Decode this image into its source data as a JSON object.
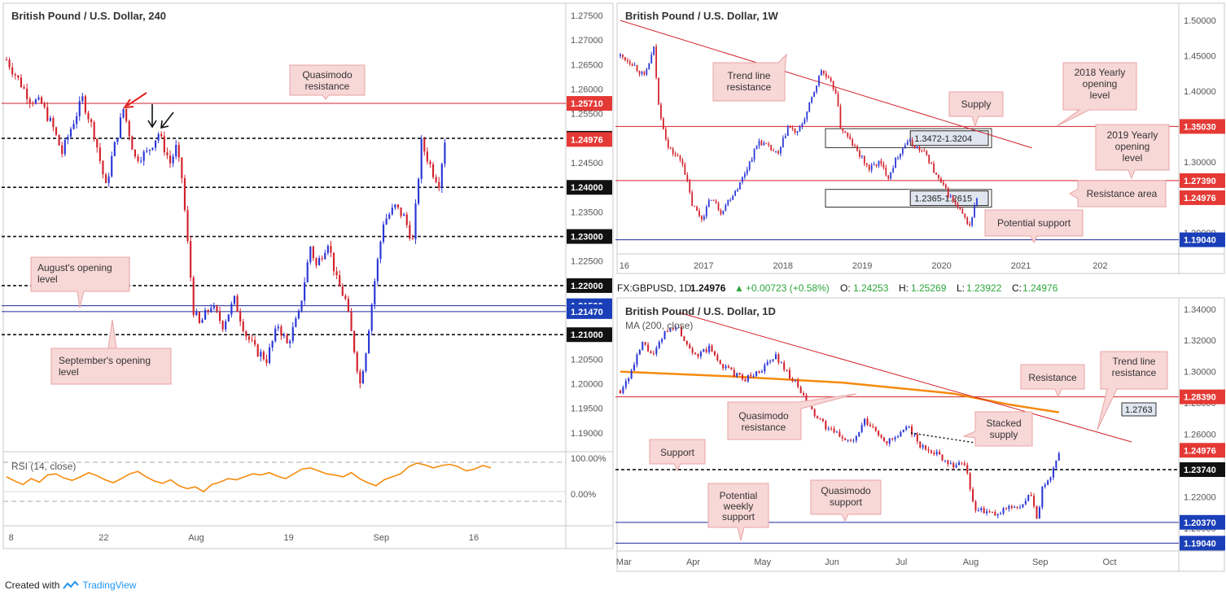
{
  "colors": {
    "bull": "#2a36d6",
    "bear": "#d3212c",
    "ma": "#f58a0e",
    "rsi": "#f58a0e",
    "resistance_line": "#d3212c",
    "support_line": "#1f2a9c",
    "callout_fill": "#f8d7d7",
    "callout_stroke": "#e8a3a3",
    "box_fill": "#dfe6ef"
  },
  "footer": {
    "prefix": "Created with",
    "brand": "TradingView"
  },
  "chart_data": [
    {
      "id": "h4",
      "type": "candlestick",
      "title": "British Pound / U.S. Dollar, 240",
      "y_ticks": [
        "1.27500",
        "1.27000",
        "1.26500",
        "1.26000",
        "1.25500",
        "1.25000",
        "1.24500",
        "1.24000",
        "1.23500",
        "1.23000",
        "1.22500",
        "1.22000",
        "1.21500",
        "1.21000",
        "1.20500",
        "1.20000",
        "1.19500",
        "1.19000"
      ],
      "x_ticks": [
        "8",
        "22",
        "Aug",
        "19",
        "Sep",
        "16"
      ],
      "ylim": [
        1.187,
        1.2765
      ],
      "path": [
        [
          0,
          1.266
        ],
        [
          4,
          1.262
        ],
        [
          8,
          1.258
        ],
        [
          12,
          1.257
        ],
        [
          16,
          1.252
        ],
        [
          19,
          1.247
        ],
        [
          22,
          1.252
        ],
        [
          26,
          1.258
        ],
        [
          30,
          1.251
        ],
        [
          34,
          1.24
        ],
        [
          36,
          1.246
        ],
        [
          40,
          1.256
        ],
        [
          44,
          1.246
        ],
        [
          48,
          1.247
        ],
        [
          52,
          1.251
        ],
        [
          56,
          1.245
        ],
        [
          58,
          1.248
        ],
        [
          60,
          1.242
        ],
        [
          64,
          1.215
        ],
        [
          66,
          1.212
        ],
        [
          70,
          1.216
        ],
        [
          74,
          1.212
        ],
        [
          78,
          1.217
        ],
        [
          82,
          1.21
        ],
        [
          85,
          1.207
        ],
        [
          89,
          1.205
        ],
        [
          93,
          1.212
        ],
        [
          96,
          1.208
        ],
        [
          100,
          1.214
        ],
        [
          104,
          1.228
        ],
        [
          106,
          1.224
        ],
        [
          110,
          1.229
        ],
        [
          113,
          1.221
        ],
        [
          116,
          1.217
        ],
        [
          119,
          1.207
        ],
        [
          121,
          1.2
        ],
        [
          123,
          1.207
        ],
        [
          126,
          1.221
        ],
        [
          129,
          1.233
        ],
        [
          133,
          1.236
        ],
        [
          136,
          1.234
        ],
        [
          139,
          1.229
        ],
        [
          142,
          1.249
        ],
        [
          146,
          1.243
        ],
        [
          148,
          1.241
        ],
        [
          150,
          1.2497
        ]
      ],
      "x_total": 190,
      "levels": [
        {
          "price": 1.2571,
          "label": "1.25710",
          "kind": "red"
        },
        {
          "price": 1.25,
          "label": "1.25000",
          "kind": "black"
        },
        {
          "price": 1.24,
          "label": "1.24000",
          "kind": "black"
        },
        {
          "price": 1.23,
          "label": "1.23000",
          "kind": "black"
        },
        {
          "price": 1.22,
          "label": "1.22000",
          "kind": "black"
        },
        {
          "price": 1.2159,
          "label": "1.21590",
          "kind": "blue"
        },
        {
          "price": 1.2147,
          "label": "1.21470",
          "kind": "blue"
        },
        {
          "price": 1.21,
          "label": "1.21000",
          "kind": "black"
        }
      ],
      "current": {
        "price": 1.24976,
        "label": "1.24976"
      },
      "annotations": [
        "Quasimodo resistance",
        "August's opening level",
        "September's opening level"
      ],
      "rsi": {
        "label": "RSI (14, close)",
        "ticks": [
          "100.00%",
          "0.00%"
        ],
        "values": [
          55,
          48,
          42,
          52,
          46,
          58,
          60,
          53,
          49,
          55,
          62,
          57,
          50,
          45,
          52,
          60,
          64,
          55,
          48,
          44,
          50,
          40,
          35,
          38,
          30,
          42,
          46,
          52,
          50,
          55,
          60,
          58,
          62,
          56,
          52,
          60,
          68,
          70,
          65,
          60,
          58,
          55,
          62,
          52,
          45,
          40,
          50,
          55,
          60,
          72,
          78,
          75,
          70,
          74,
          76,
          72,
          65,
          68,
          74,
          70
        ]
      }
    },
    {
      "id": "weekly",
      "type": "candlestick",
      "title": "British Pound / U.S. Dollar, 1W",
      "y_ticks": [
        "1.50000",
        "1.45000",
        "1.40000",
        "1.35000",
        "1.30000",
        "1.25000",
        "1.20000"
      ],
      "x_ticks": [
        "16",
        "2017",
        "2018",
        "2019",
        "2020",
        "2021",
        "202"
      ],
      "ylim": [
        1.175,
        1.515
      ],
      "path": [
        [
          0,
          1.45
        ],
        [
          5,
          1.44
        ],
        [
          10,
          1.42
        ],
        [
          14,
          1.46
        ],
        [
          16,
          1.38
        ],
        [
          20,
          1.32
        ],
        [
          26,
          1.3
        ],
        [
          30,
          1.24
        ],
        [
          34,
          1.22
        ],
        [
          38,
          1.25
        ],
        [
          42,
          1.23
        ],
        [
          46,
          1.25
        ],
        [
          50,
          1.27
        ],
        [
          54,
          1.3
        ],
        [
          58,
          1.33
        ],
        [
          62,
          1.32
        ],
        [
          66,
          1.31
        ],
        [
          70,
          1.35
        ],
        [
          74,
          1.34
        ],
        [
          78,
          1.37
        ],
        [
          82,
          1.41
        ],
        [
          84,
          1.43
        ],
        [
          86,
          1.42
        ],
        [
          90,
          1.4
        ],
        [
          92,
          1.35
        ],
        [
          96,
          1.33
        ],
        [
          100,
          1.31
        ],
        [
          104,
          1.29
        ],
        [
          108,
          1.3
        ],
        [
          112,
          1.28
        ],
        [
          116,
          1.31
        ],
        [
          120,
          1.33
        ],
        [
          124,
          1.32
        ],
        [
          128,
          1.31
        ],
        [
          132,
          1.28
        ],
        [
          136,
          1.26
        ],
        [
          140,
          1.24
        ],
        [
          144,
          1.22
        ],
        [
          146,
          1.21
        ],
        [
          149,
          1.2497
        ]
      ],
      "x_total": 232,
      "levels": [
        {
          "price": 1.3503,
          "label": "1.35030",
          "kind": "red"
        },
        {
          "price": 1.2739,
          "label": "1.27390",
          "kind": "red"
        },
        {
          "price": 1.1904,
          "label": "1.19040",
          "kind": "blue"
        }
      ],
      "current": {
        "price": 1.24976,
        "label": "1.24976"
      },
      "zones": [
        {
          "label": "1.3472-1.3204",
          "top": 1.3472,
          "bottom": 1.3204
        },
        {
          "label": "1.2365-1.2615",
          "top": 1.2615,
          "bottom": 1.2365
        }
      ],
      "trendline": [
        [
          0,
          1.5
        ],
        [
          172,
          1.32
        ]
      ],
      "annotations": [
        "Trend line resistance",
        "2018 Yearly opening level",
        "Supply",
        "2019 Yearly opening level",
        "Resistance area",
        "Potential support"
      ]
    },
    {
      "id": "daily",
      "type": "candlestick",
      "title": "British Pound / U.S. Dollar, 1D",
      "header": {
        "symbol": "FX:GBPUSD, 1D",
        "last": "1.24976",
        "change": "+0.00723 (+0.58%)",
        "O": "1.24253",
        "H": "1.25269",
        "L": "1.23922",
        "C": "1.24976"
      },
      "ma_label": "MA (200, close)",
      "y_ticks": [
        "1.34000",
        "1.32000",
        "1.30000",
        "1.28000",
        "1.26000",
        "1.24000",
        "1.22000",
        "1.20000"
      ],
      "x_ticks": [
        "Mar",
        "Apr",
        "May",
        "Jun",
        "Jul",
        "Aug",
        "Sep",
        "Oct"
      ],
      "ylim": [
        1.188,
        1.343
      ],
      "path": [
        [
          0,
          1.288
        ],
        [
          4,
          1.3
        ],
        [
          8,
          1.318
        ],
        [
          12,
          1.31
        ],
        [
          16,
          1.325
        ],
        [
          20,
          1.33
        ],
        [
          24,
          1.318
        ],
        [
          28,
          1.31
        ],
        [
          32,
          1.315
        ],
        [
          36,
          1.305
        ],
        [
          40,
          1.3
        ],
        [
          44,
          1.295
        ],
        [
          48,
          1.298
        ],
        [
          52,
          1.303
        ],
        [
          56,
          1.31
        ],
        [
          60,
          1.3
        ],
        [
          64,
          1.29
        ],
        [
          68,
          1.277
        ],
        [
          72,
          1.268
        ],
        [
          76,
          1.262
        ],
        [
          80,
          1.258
        ],
        [
          84,
          1.255
        ],
        [
          88,
          1.268
        ],
        [
          92,
          1.262
        ],
        [
          96,
          1.255
        ],
        [
          100,
          1.258
        ],
        [
          104,
          1.265
        ],
        [
          108,
          1.252
        ],
        [
          112,
          1.25
        ],
        [
          116,
          1.245
        ],
        [
          120,
          1.24
        ],
        [
          124,
          1.242
        ],
        [
          126,
          1.225
        ],
        [
          128,
          1.212
        ],
        [
          132,
          1.21
        ],
        [
          136,
          1.208
        ],
        [
          140,
          1.215
        ],
        [
          144,
          1.212
        ],
        [
          148,
          1.222
        ],
        [
          150,
          1.205
        ],
        [
          152,
          1.225
        ],
        [
          155,
          1.232
        ],
        [
          158,
          1.2497
        ]
      ],
      "x_total": 200,
      "ma200": [
        [
          0,
          1.3
        ],
        [
          40,
          1.297
        ],
        [
          80,
          1.293
        ],
        [
          120,
          1.286
        ],
        [
          140,
          1.279
        ],
        [
          158,
          1.274
        ]
      ],
      "levels": [
        {
          "price": 1.2839,
          "label": "1.28390",
          "kind": "red"
        },
        {
          "price": 1.2374,
          "label": "1.23740",
          "kind": "black"
        },
        {
          "price": 1.2037,
          "label": "1.20370",
          "kind": "blue"
        },
        {
          "price": 1.1904,
          "label": "1.19040",
          "kind": "blue"
        }
      ],
      "current": {
        "price": 1.24976,
        "label": "1.24976"
      },
      "tag_1_2763": "1.2763",
      "annotations": [
        "Quasimodo resistance",
        "Resistance",
        "Trend line resistance",
        "Stacked supply",
        "Support",
        "Potential weekly support",
        "Quasimodo support"
      ]
    }
  ]
}
